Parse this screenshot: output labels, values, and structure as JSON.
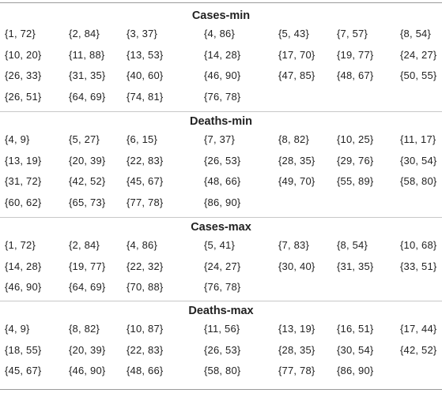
{
  "sections": [
    {
      "title": "Cases-min",
      "rows": [
        [
          "{1, 72}",
          "{2, 84}",
          "{3, 37}",
          "{4, 86}",
          "{5, 43}",
          "{7, 57}",
          "{8, 54}"
        ],
        [
          "{10, 20}",
          "{11, 88}",
          "{13, 53}",
          "{14, 28}",
          "{17, 70}",
          "{19, 77}",
          "{24, 27}"
        ],
        [
          "{26, 33}",
          "{31, 35}",
          "{40, 60}",
          "{46, 90}",
          "{47, 85}",
          "{48, 67}",
          "{50, 55}"
        ],
        [
          "{26, 51}",
          "{64, 69}",
          "{74, 81}",
          "{76, 78}"
        ]
      ]
    },
    {
      "title": "Deaths-min",
      "rows": [
        [
          "{4, 9}",
          "{5, 27}",
          "{6, 15}",
          "{7, 37}",
          "{8, 82}",
          "{10, 25}",
          "{11, 17}"
        ],
        [
          "{13, 19}",
          "{20, 39}",
          "{22, 83}",
          "{26, 53}",
          "{28, 35}",
          "{29, 76}",
          "{30, 54}"
        ],
        [
          "{31, 72}",
          "{42, 52}",
          "{45, 67}",
          "{48, 66}",
          "{49, 70}",
          "{55, 89}",
          "{58, 80}"
        ],
        [
          "{60, 62}",
          "{65, 73}",
          "{77, 78}",
          "{86, 90}"
        ]
      ]
    },
    {
      "title": "Cases-max",
      "rows": [
        [
          "{1, 72}",
          "{2, 84}",
          "{4, 86}",
          "{5, 41}",
          "{7, 83}",
          "{8, 54}",
          "{10, 68}"
        ],
        [
          "{14, 28}",
          "{19, 77}",
          "{22, 32}",
          "{24, 27}",
          "{30, 40}",
          "{31, 35}",
          "{33, 51}"
        ],
        [
          "{46, 90}",
          "{64, 69}",
          "{70, 88}",
          "{76, 78}"
        ]
      ]
    },
    {
      "title": "Deaths-max",
      "rows": [
        [
          "{4, 9}",
          "{8, 82}",
          "{10, 87}",
          "{11, 56}",
          "{13, 19}",
          "{16, 51}",
          "{17, 44}"
        ],
        [
          "{18, 55}",
          "{20, 39}",
          "{22, 83}",
          "{26, 53}",
          "{28, 35}",
          "{30, 54}",
          "{42, 52}"
        ],
        [
          "{45, 67}",
          "{46, 90}",
          "{48, 66}",
          "{58, 80}",
          "{77, 78}",
          "{86, 90}"
        ]
      ]
    }
  ]
}
